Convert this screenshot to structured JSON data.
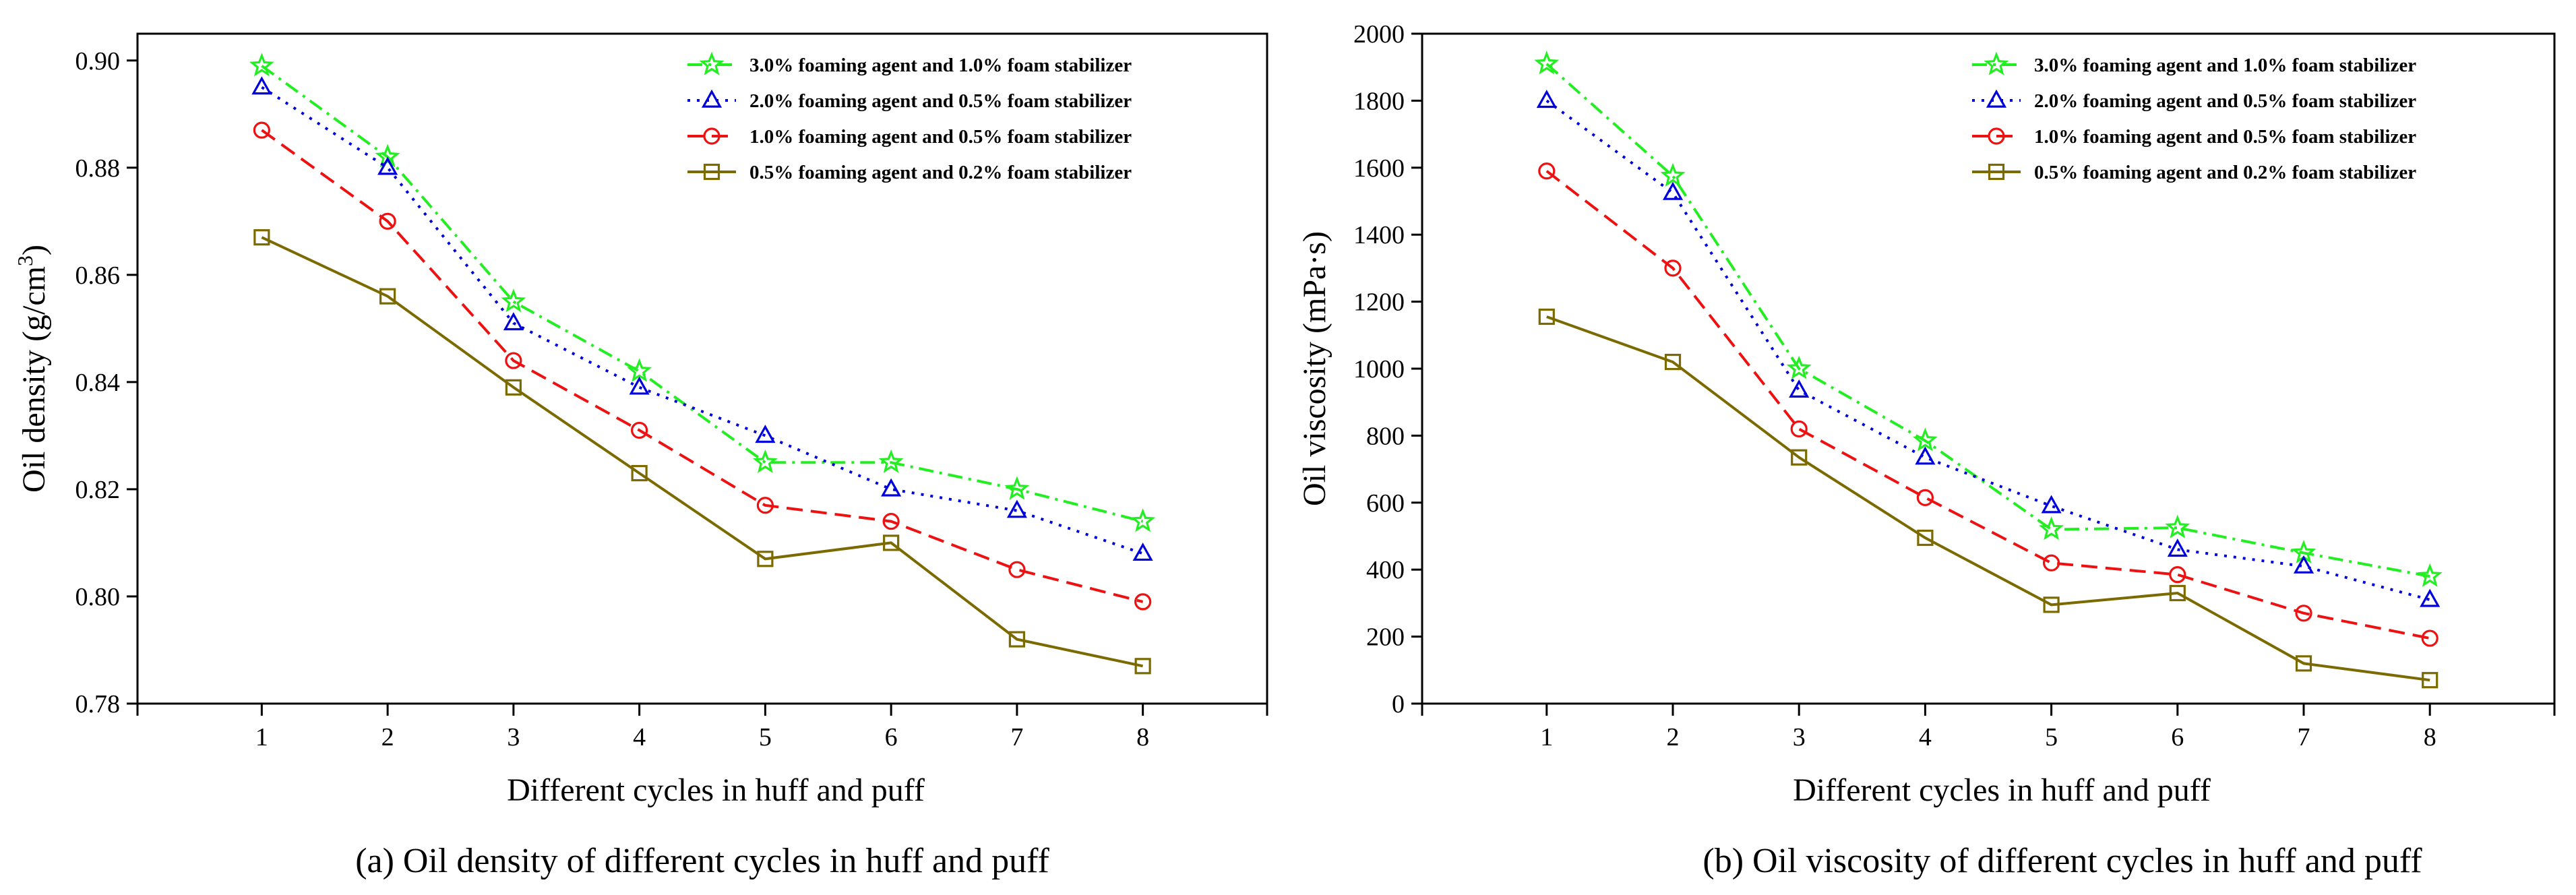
{
  "colors": {
    "s30": "#22ee22",
    "s20": "#0000dd",
    "s10": "#ee1111",
    "s05": "#7a6a00"
  },
  "chart_data": [
    {
      "type": "line",
      "caption": "(a) Oil density of different cycles in huff and puff",
      "xlabel": "Different cycles in huff and puff",
      "ylabel": "Oil density (g/cm³)",
      "ylabel_main": "Oil density (g/cm",
      "ylabel_sup": "3",
      "ylabel_close": ")",
      "x": [
        1,
        2,
        3,
        4,
        5,
        6,
        7,
        8
      ],
      "xticks": [
        "1",
        "2",
        "3",
        "4",
        "5",
        "6",
        "7",
        "8"
      ],
      "ylim": [
        0.78,
        0.905
      ],
      "yticks": [
        "0.78",
        "0.80",
        "0.82",
        "0.84",
        "0.86",
        "0.88",
        "0.90"
      ],
      "legend_position": "top-right",
      "series": [
        {
          "name": "3.0% foaming agent and 1.0% foam stabilizer",
          "marker": "star",
          "dash": "dashdot",
          "values": [
            0.899,
            0.882,
            0.855,
            0.842,
            0.825,
            0.825,
            0.82,
            0.814
          ]
        },
        {
          "name": "2.0% foaming agent and 0.5% foam stabilizer",
          "marker": "triangle",
          "dash": "dot",
          "values": [
            0.895,
            0.88,
            0.851,
            0.839,
            0.83,
            0.82,
            0.816,
            0.808
          ]
        },
        {
          "name": "1.0% foaming agent and 0.5% foam stabilizer",
          "marker": "circle",
          "dash": "dash",
          "values": [
            0.887,
            0.87,
            0.844,
            0.831,
            0.817,
            0.814,
            0.805,
            0.799
          ]
        },
        {
          "name": "0.5% foaming agent and 0.2% foam stabilizer",
          "marker": "square",
          "dash": "solid",
          "values": [
            0.867,
            0.856,
            0.839,
            0.823,
            0.807,
            0.81,
            0.792,
            0.787
          ]
        }
      ]
    },
    {
      "type": "line",
      "caption": "(b) Oil viscosity of different cycles in huff and puff",
      "xlabel": "Different cycles in huff and puff",
      "ylabel": "Oil viscosity (mPa·s)",
      "x": [
        1,
        2,
        3,
        4,
        5,
        6,
        7,
        8
      ],
      "xticks": [
        "1",
        "2",
        "3",
        "4",
        "5",
        "6",
        "7",
        "8"
      ],
      "ylim": [
        0,
        2000
      ],
      "yticks": [
        "0",
        "200",
        "400",
        "600",
        "800",
        "1000",
        "1200",
        "1400",
        "1600",
        "1800",
        "2000"
      ],
      "legend_position": "top-right",
      "series": [
        {
          "name": "3.0% foaming agent and 1.0% foam stabilizer",
          "marker": "star",
          "dash": "dashdot",
          "values": [
            1910,
            1575,
            1000,
            785,
            520,
            525,
            450,
            380
          ]
        },
        {
          "name": "2.0% foaming agent and 0.5% foam stabilizer",
          "marker": "triangle",
          "dash": "dot",
          "values": [
            1800,
            1525,
            935,
            735,
            590,
            460,
            410,
            310
          ]
        },
        {
          "name": "1.0% foaming agent and 0.5% foam stabilizer",
          "marker": "circle",
          "dash": "dash",
          "values": [
            1590,
            1300,
            820,
            615,
            420,
            385,
            270,
            195
          ]
        },
        {
          "name": "0.5% foaming agent and 0.2% foam stabilizer",
          "marker": "square",
          "dash": "solid",
          "values": [
            1155,
            1020,
            735,
            495,
            295,
            330,
            120,
            70
          ]
        }
      ]
    }
  ]
}
